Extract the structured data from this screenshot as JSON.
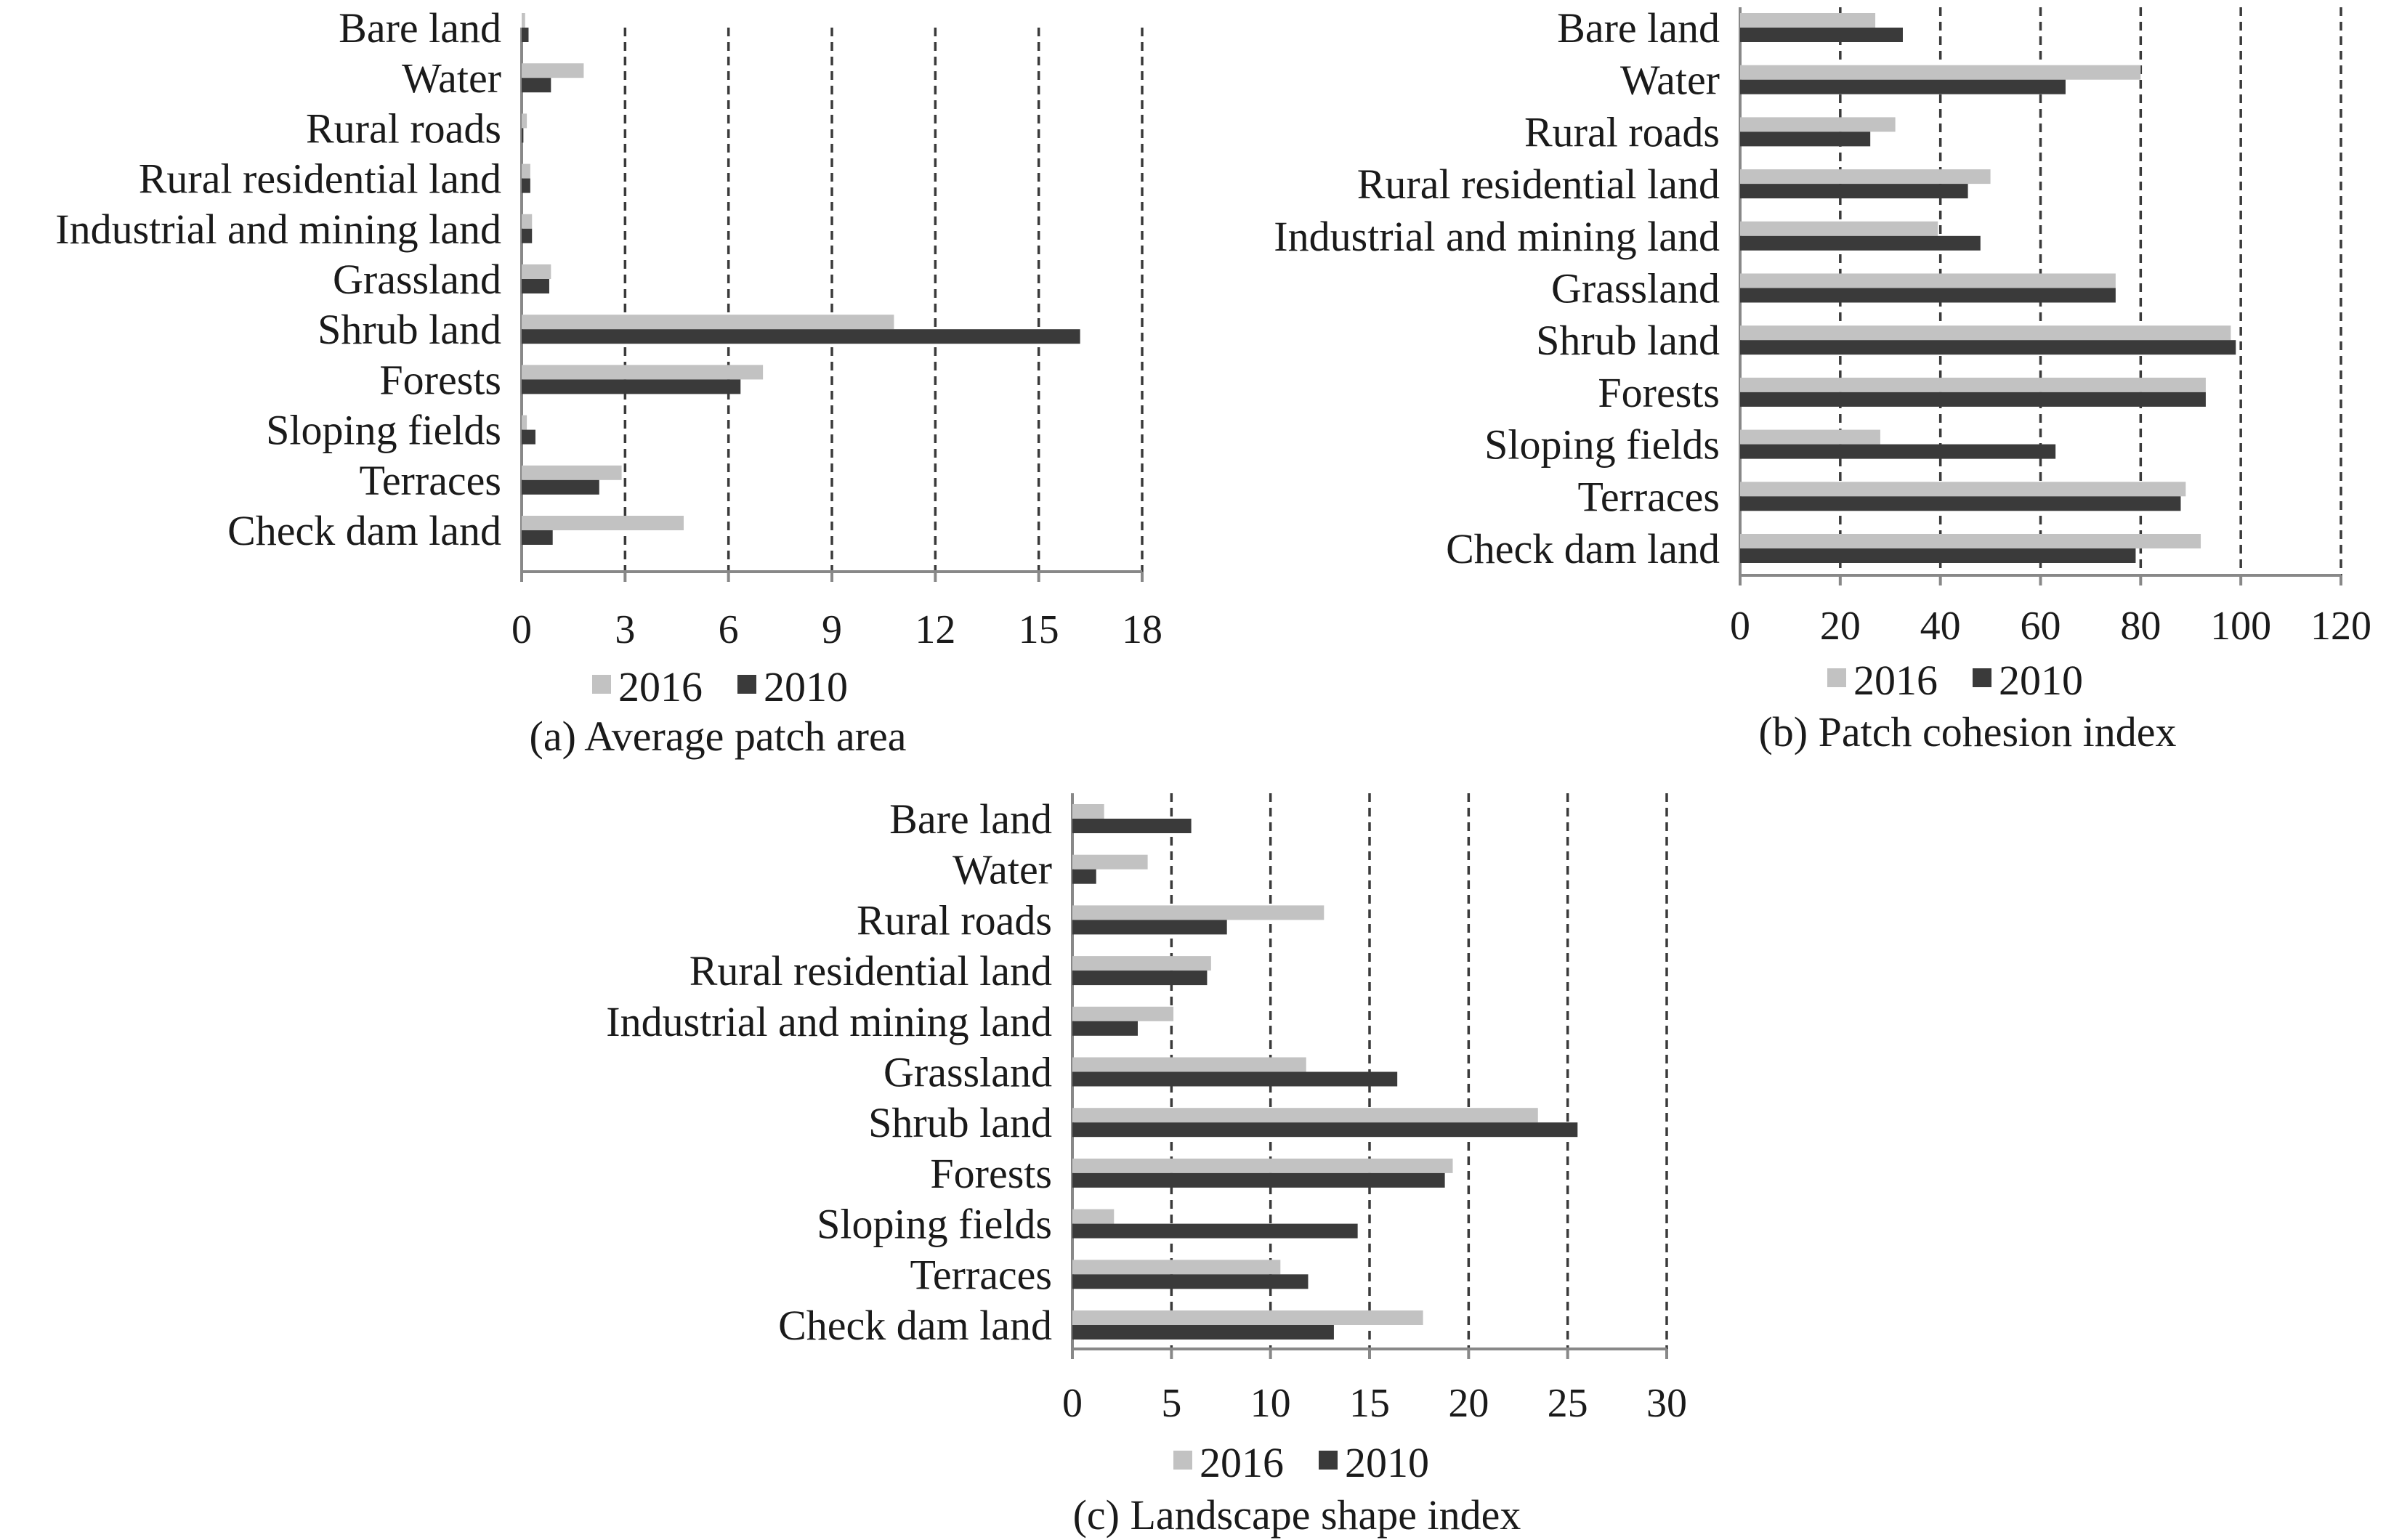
{
  "colors": {
    "series_2016": "#c2c2c2",
    "series_2010": "#3a3a3a",
    "grid": "#3a3a3a",
    "axis": "#888888"
  },
  "chart_data": [
    {
      "type": "bar",
      "orientation": "horizontal",
      "caption": "(a) Average patch area",
      "categories": [
        "Bare land",
        "Water",
        "Rural roads",
        "Rural residential  land",
        "Industrial and mining land",
        "Grassland",
        "Shrub land",
        "Forests",
        "Sloping fields",
        "Terraces",
        "Check dam land"
      ],
      "series": [
        {
          "name": "2016",
          "values": [
            0.1,
            1.8,
            0.15,
            0.25,
            0.3,
            0.85,
            10.8,
            7.0,
            0.15,
            2.9,
            4.7
          ]
        },
        {
          "name": "2010",
          "values": [
            0.2,
            0.85,
            0.05,
            0.25,
            0.3,
            0.8,
            16.2,
            6.35,
            0.4,
            2.25,
            0.9
          ]
        }
      ],
      "xlim": [
        0,
        18
      ],
      "xticks": [
        "0",
        "3",
        "6",
        "9",
        "12",
        "15",
        "18"
      ],
      "grid": true,
      "legend": "bottom"
    },
    {
      "type": "bar",
      "orientation": "horizontal",
      "caption": "(b) Patch cohesion index",
      "categories": [
        "Bare land",
        "Water",
        "Rural roads",
        "Rural residential  land",
        "Industrial and mining land",
        "Grassland",
        "Shrub land",
        "Forests",
        "Sloping fields",
        "Terraces",
        "Check dam land"
      ],
      "series": [
        {
          "name": "2016",
          "values": [
            27,
            80,
            31,
            50,
            39.5,
            75,
            98,
            93,
            28,
            89,
            92
          ]
        },
        {
          "name": "2010",
          "values": [
            32.5,
            65,
            26,
            45.5,
            48,
            75,
            99,
            93,
            63,
            88,
            79
          ]
        }
      ],
      "xlim": [
        0,
        120
      ],
      "xticks": [
        "0",
        "20",
        "40",
        "60",
        "80",
        "100",
        "120"
      ],
      "grid": true,
      "legend": "bottom"
    },
    {
      "type": "bar",
      "orientation": "horizontal",
      "caption": "(c) Landscape shape index",
      "categories": [
        "Bare land",
        "Water",
        "Rural roads",
        "Rural residential  land",
        "Industrial and mining land",
        "Grassland",
        "Shrub land",
        "Forests",
        "Sloping fields",
        "Terraces",
        "Check dam land"
      ],
      "series": [
        {
          "name": "2016",
          "values": [
            1.6,
            3.8,
            12.7,
            7.0,
            5.1,
            11.8,
            23.5,
            19.2,
            2.1,
            10.5,
            17.7
          ]
        },
        {
          "name": "2010",
          "values": [
            6.0,
            1.2,
            7.8,
            6.8,
            3.3,
            16.4,
            25.5,
            18.8,
            14.4,
            11.9,
            13.2
          ]
        }
      ],
      "xlim": [
        0,
        30
      ],
      "xticks": [
        "0",
        "5",
        "10",
        "15",
        "20",
        "25",
        "30"
      ],
      "grid": true,
      "legend": "bottom"
    }
  ]
}
